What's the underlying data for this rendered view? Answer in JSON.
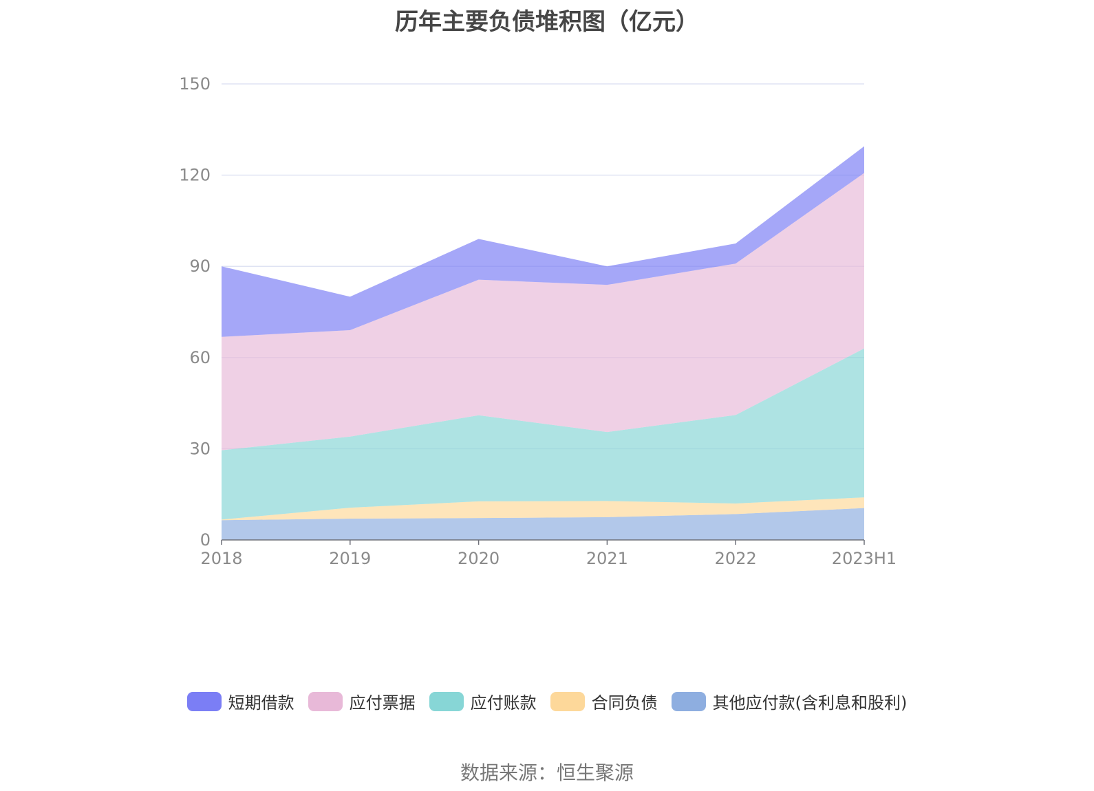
{
  "title": "历年主要负债堆积图（亿元）",
  "source": "数据来源：恒生聚源",
  "chart_data": {
    "type": "area",
    "stacked": true,
    "categories": [
      "2018",
      "2019",
      "2020",
      "2021",
      "2022",
      "2023H1"
    ],
    "ylim": [
      0,
      150
    ],
    "yticks": [
      0,
      30,
      60,
      90,
      120,
      150
    ],
    "grid": true,
    "legend_position": "bottom",
    "series": [
      {
        "name": "其他应付款(含利息和股利)",
        "color": "#8eaee0",
        "values": [
          6.5,
          7.0,
          7.2,
          7.5,
          8.5,
          10.5
        ]
      },
      {
        "name": "合同负债",
        "color": "#fdd89a",
        "values": [
          0.2,
          3.6,
          5.5,
          5.3,
          3.5,
          3.5
        ]
      },
      {
        "name": "应付账款",
        "color": "#87d6d6",
        "values": [
          22.8,
          23.4,
          28.3,
          22.7,
          29.1,
          49.0
        ]
      },
      {
        "name": "应付票据",
        "color": "#e8b9d8",
        "values": [
          37.3,
          35.0,
          44.6,
          48.4,
          49.8,
          57.7
        ]
      },
      {
        "name": "短期借款",
        "color": "#7b7ef5",
        "values": [
          23.2,
          11.0,
          13.4,
          6.1,
          6.6,
          8.8
        ]
      }
    ]
  },
  "legend": [
    {
      "label": "短期借款",
      "color": "#7b7ef5"
    },
    {
      "label": "应付票据",
      "color": "#e8b9d8"
    },
    {
      "label": "应付账款",
      "color": "#87d6d6"
    },
    {
      "label": "合同负债",
      "color": "#fdd89a"
    },
    {
      "label": "其他应付款(含利息和股利)",
      "color": "#8eaee0"
    }
  ]
}
